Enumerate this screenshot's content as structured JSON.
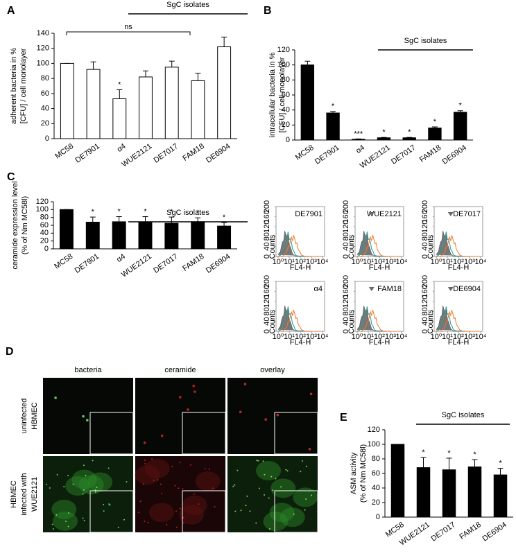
{
  "chart_data": [
    {
      "type": "bar",
      "panel": "A",
      "ylabel": [
        "adherent bacteria in %",
        "[CFU] / cell monolayer"
      ],
      "categories": [
        "MC58",
        "DE7901",
        "α4",
        "WUE2121",
        "DE7017",
        "FAM18",
        "DE6904"
      ],
      "values": [
        100,
        92,
        53,
        82,
        95,
        77,
        122
      ],
      "errors": [
        0,
        10,
        12,
        8,
        8,
        10,
        13
      ],
      "significance": [
        null,
        null,
        "*",
        null,
        null,
        null,
        null
      ],
      "group_label": "SgC isolates",
      "comparison_label": "ns",
      "ylim": [
        0,
        140
      ],
      "yticks": [
        0,
        20,
        40,
        60,
        80,
        100,
        120,
        140
      ],
      "color": "#ffffff",
      "edge_color": "#000000"
    },
    {
      "type": "bar",
      "panel": "B",
      "ylabel": [
        "intracellular bacteria in %",
        "[CFU] / cell monolayer"
      ],
      "categories": [
        "MC58",
        "DE7901",
        "α4",
        "WUE2121",
        "DE7017",
        "FAM18",
        "DE6904"
      ],
      "values": [
        100,
        36,
        1,
        3,
        3,
        16,
        37
      ],
      "errors": [
        5,
        2,
        0.5,
        0.5,
        0.5,
        1.5,
        2
      ],
      "significance": [
        null,
        "*",
        "***",
        "*",
        "*",
        "*",
        "*"
      ],
      "group_label": "SgC isolates",
      "ylim": [
        0,
        120
      ],
      "yticks": [
        0,
        20,
        40,
        60,
        80,
        100,
        120
      ],
      "color": "#000000",
      "edge_color": "#000000"
    },
    {
      "type": "bar",
      "panel": "C",
      "ylabel": [
        "ceramide  expression level",
        "(% of Nm MC58l)"
      ],
      "categories": [
        "MC58",
        "DE7901",
        "α4",
        "WUE2121",
        "DE7017",
        "FAM18",
        "DE6904"
      ],
      "values": [
        100,
        68,
        69,
        68,
        65,
        69,
        58
      ],
      "errors": [
        0,
        13,
        13,
        14,
        16,
        10,
        9
      ],
      "significance": [
        null,
        "*",
        "*",
        "*",
        "*",
        "*",
        "*"
      ],
      "group_label": "SgC isolates",
      "ylim": [
        0,
        120
      ],
      "yticks": [
        0,
        20,
        40,
        60,
        80,
        100,
        120
      ],
      "color": "#000000",
      "edge_color": "#000000"
    },
    {
      "type": "bar",
      "panel": "E",
      "ylabel": [
        "ASM activity",
        "(% of Nm MC58l)"
      ],
      "categories": [
        "MC58",
        "WUE2121",
        "DE7017",
        "FAM18",
        "DE6904"
      ],
      "values": [
        100,
        68,
        65,
        69,
        58
      ],
      "errors": [
        0,
        14,
        16,
        10,
        9
      ],
      "significance": [
        null,
        "*",
        "*",
        "*",
        "*"
      ],
      "group_label": "SgC isolates",
      "ylim": [
        0,
        120
      ],
      "yticks": [
        0,
        20,
        40,
        60,
        80,
        100,
        120
      ],
      "color": "#000000",
      "edge_color": "#000000"
    }
  ],
  "flow": {
    "titles": [
      "DE7901",
      "WUE2121",
      "DE7017",
      "α4",
      "FAM18",
      "DE6904"
    ],
    "marker": [
      false,
      true,
      true,
      false,
      true,
      true
    ],
    "ylabel": "Counts",
    "xlabel": "FL4-H",
    "xscale": "log",
    "xlim": [
      1,
      10000
    ],
    "xticks": [
      {
        "value": 1,
        "label": "10⁰"
      },
      {
        "value": 10,
        "label": "10¹"
      },
      {
        "value": 100,
        "label": "10²"
      },
      {
        "value": 1000,
        "label": "10³"
      },
      {
        "value": 10000,
        "label": "10⁴"
      }
    ],
    "ylim": [
      0,
      200
    ],
    "yticks": [
      0,
      40,
      80,
      120,
      160,
      200
    ]
  },
  "microscopy": {
    "panel": "D",
    "columns": [
      "bacteria",
      "ceramide",
      "overlay"
    ],
    "rows": [
      [
        "uninfected",
        "HBMEC"
      ],
      [
        "HBMEC",
        "infected with",
        "WUE2121"
      ]
    ]
  }
}
